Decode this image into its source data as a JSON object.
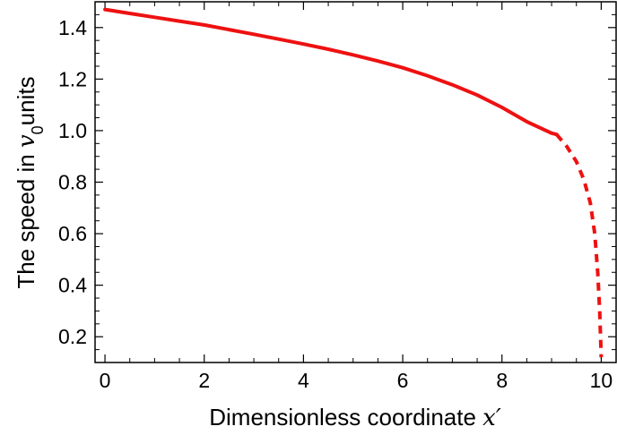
{
  "chart_data": {
    "type": "line",
    "title": "",
    "xlabel_prefix": "Dimensionless coordinate ",
    "xlabel_var": "x′",
    "ylabel_prefix": "The speed in ",
    "ylabel_var": "v",
    "ylabel_sub": "0",
    "ylabel_suffix": "units",
    "xlim": [
      -0.2,
      10.3
    ],
    "ylim": [
      0.1,
      1.5
    ],
    "x_ticks": [
      0,
      2,
      4,
      6,
      8,
      10
    ],
    "x_tick_labels": [
      "0",
      "2",
      "4",
      "6",
      "8",
      "10"
    ],
    "y_ticks": [
      0.2,
      0.4,
      0.6,
      0.8,
      1.0,
      1.2,
      1.4
    ],
    "y_tick_labels": [
      "0.2",
      "0.4",
      "0.6",
      "0.8",
      "1.0",
      "1.2",
      "1.4"
    ],
    "grid": false,
    "line_color": "#ee1111",
    "series": [
      {
        "style": "solid",
        "x": [
          0,
          0.5,
          1,
          1.5,
          2,
          2.5,
          3,
          3.5,
          4,
          4.5,
          5,
          5.5,
          6,
          6.5,
          7,
          7.5,
          8,
          8.5,
          9,
          9.1
        ],
        "y": [
          1.47,
          1.455,
          1.44,
          1.425,
          1.41,
          1.392,
          1.374,
          1.355,
          1.336,
          1.316,
          1.294,
          1.27,
          1.244,
          1.213,
          1.178,
          1.138,
          1.09,
          1.035,
          0.99,
          0.985
        ]
      },
      {
        "style": "dashed",
        "x": [
          9.1,
          9.3,
          9.5,
          9.65,
          9.78,
          9.87,
          9.93,
          9.97,
          10.0
        ],
        "y": [
          0.985,
          0.94,
          0.88,
          0.81,
          0.72,
          0.6,
          0.45,
          0.3,
          0.12
        ]
      }
    ]
  }
}
